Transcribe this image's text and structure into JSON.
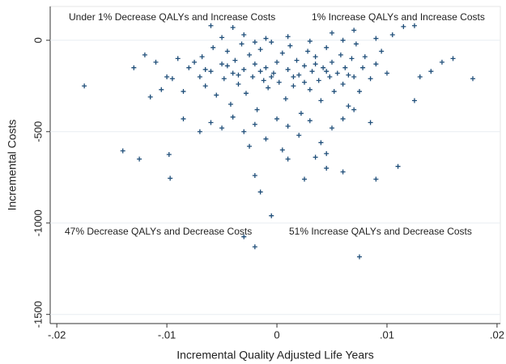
{
  "chart_data": {
    "type": "scatter",
    "xlabel": "Incremental Quality Adjusted Life Years",
    "ylabel": "Incremental Costs",
    "annotations": [
      "Under 1% Decrease QALYs and Increase Costs",
      "1% Increase QALYs and Increase Costs",
      "47% Decrease QALYs and Decrease Costs",
      "51% Increase QALYs and Decrease Costs"
    ],
    "color": "#1f4e79",
    "xlim": [
      -0.0206,
      0.0203
    ],
    "ylim": [
      -1550,
      185
    ],
    "xticks": [
      {
        "value": -0.02,
        "label": "-.02"
      },
      {
        "value": -0.01,
        "label": "-.01"
      },
      0,
      {
        "value": 0.01,
        "label": ".01"
      },
      {
        "value": 0.02,
        "label": ".02"
      }
    ],
    "yticks": [
      0,
      -500,
      -1000,
      -1500
    ],
    "grid": "y",
    "x": [
      -0.0175,
      -0.014,
      -0.0125,
      -0.0098,
      -0.0097,
      -0.0085,
      -0.003,
      -0.002,
      -0.0005,
      -0.0015,
      -0.002,
      0.0075,
      0.011,
      0.009,
      0.0178,
      0.016,
      0.015,
      0.0125,
      0.0115,
      -0.006,
      -0.004,
      0.005,
      0.007,
      0.0105,
      0.014,
      0.013,
      0.0125,
      -0.013,
      -0.012,
      -0.0115,
      -0.01,
      0.0025,
      0.0045,
      0.006,
      0.0045,
      0.001,
      -0.008,
      -0.0075,
      -0.007,
      -0.0068,
      -0.0065,
      -0.006,
      -0.0058,
      -0.0055,
      -0.005,
      -0.0048,
      -0.0045,
      -0.0042,
      -0.004,
      -0.0038,
      -0.0035,
      -0.0032,
      -0.003,
      -0.0028,
      -0.0025,
      -0.0022,
      -0.002,
      -0.0018,
      -0.0015,
      -0.0012,
      -0.001,
      -0.0008,
      -0.0005,
      -0.0003,
      0,
      0.0002,
      0.0005,
      0.0008,
      0.001,
      0.0012,
      0.0015,
      0.0018,
      0.002,
      0.0022,
      0.0025,
      0.0028,
      0.003,
      0.0032,
      0.0035,
      0.0038,
      0.004,
      0.0042,
      0.0045,
      0.0048,
      0.005,
      0.0052,
      0.0055,
      0.0058,
      0.006,
      0.0062,
      0.0065,
      0.0068,
      0.007,
      0.0072,
      0.0075,
      0.0078,
      0.008,
      0.0085,
      0.009,
      0.0095,
      0.01,
      -0.0085,
      -0.009,
      -0.0095,
      -0.0105,
      -0.011,
      -0.006,
      -0.005,
      -0.004,
      -0.003,
      -0.002,
      -0.001,
      0,
      0.001,
      0.002,
      0.003,
      0.004,
      0.005,
      0.006,
      0.007,
      0.0085,
      -0.007,
      -0.0025,
      0.0005,
      0.0035,
      -0.003,
      -0.001,
      0.001,
      0.003,
      -0.005,
      0.006,
      0.009,
      -0.002,
      -0.0045,
      -0.0015,
      0.0015,
      0.0045,
      -0.0035,
      0.0035,
      -0.0005,
      0.0025,
      -0.0065,
      0.0065
    ],
    "values": [
      -250,
      -605,
      -650,
      -625,
      -755,
      -430,
      -1075,
      -1130,
      -960,
      -830,
      -740,
      -1185,
      -690,
      -760,
      -210,
      -100,
      -120,
      80,
      75,
      80,
      70,
      40,
      55,
      30,
      -170,
      -200,
      -330,
      -150,
      -80,
      -310,
      -200,
      -760,
      -700,
      -720,
      -620,
      -650,
      -150,
      -120,
      -200,
      -90,
      -250,
      -170,
      -40,
      -300,
      -130,
      -210,
      -60,
      -350,
      -180,
      -110,
      -240,
      -20,
      -160,
      -290,
      -80,
      -200,
      -130,
      -380,
      -50,
      -220,
      -150,
      -260,
      -10,
      -180,
      -120,
      -230,
      -70,
      -320,
      -160,
      -30,
      -250,
      -110,
      -190,
      -400,
      -140,
      -60,
      -270,
      -170,
      -90,
      -220,
      -330,
      -150,
      -40,
      -200,
      -120,
      -280,
      -180,
      -80,
      -240,
      -150,
      -360,
      -100,
      -200,
      -20,
      -280,
      -150,
      -90,
      -210,
      -130,
      -60,
      -180,
      -280,
      -100,
      -210,
      -270,
      -120,
      -450,
      -480,
      -420,
      -500,
      -460,
      -540,
      -430,
      -470,
      -520,
      -440,
      -560,
      -480,
      -430,
      -380,
      -450,
      -500,
      -580,
      -600,
      -640,
      30,
      10,
      20,
      -5,
      15,
      0,
      10,
      -10,
      -140,
      -170,
      -200,
      -170,
      -190,
      -130,
      -200,
      -230,
      -160,
      -190
    ]
  }
}
